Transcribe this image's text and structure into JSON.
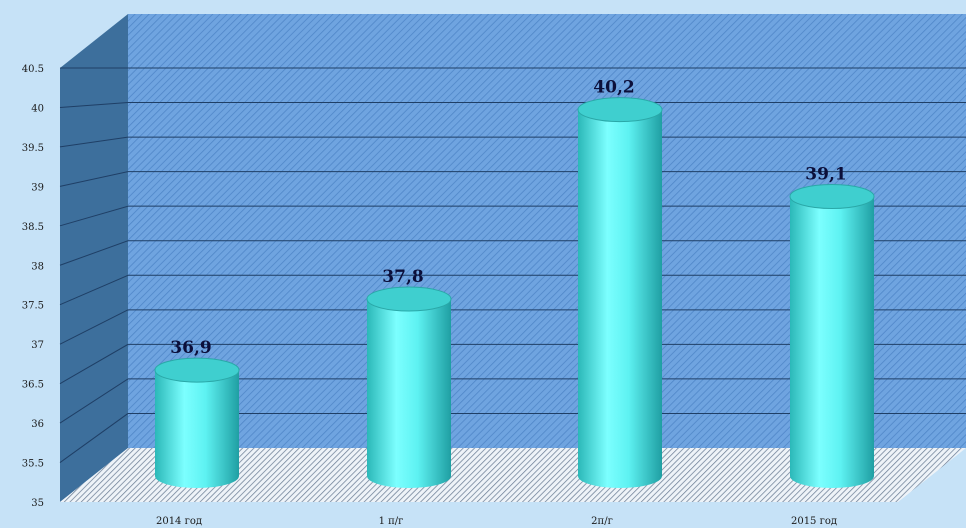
{
  "chart_data": {
    "type": "bar",
    "style": "3d-cylinder",
    "categories": [
      "2014 год",
      "1 п/г",
      "2п/г",
      "2015 год"
    ],
    "values": [
      36.9,
      37.8,
      40.2,
      39.1
    ],
    "data_labels": [
      "36,9",
      "37,8",
      "40,2",
      "39,1"
    ],
    "ylim": [
      35,
      40.5
    ],
    "yticks": [
      "35",
      "35.5",
      "36",
      "36.5",
      "37",
      "37.5",
      "38",
      "38.5",
      "39",
      "39.5",
      "40",
      "40.5"
    ],
    "title": "",
    "xlabel": "",
    "ylabel": "",
    "grid": true,
    "legend": "none",
    "colors": {
      "page_background": "#c6e2f7",
      "wall": "#6fa4e0",
      "side_wall": "#3d6f9c",
      "floor": "#9fb3c9",
      "bar": "#5ef2f2",
      "bar_top": "#3fcfcf",
      "label": "#0b0f3a"
    }
  }
}
